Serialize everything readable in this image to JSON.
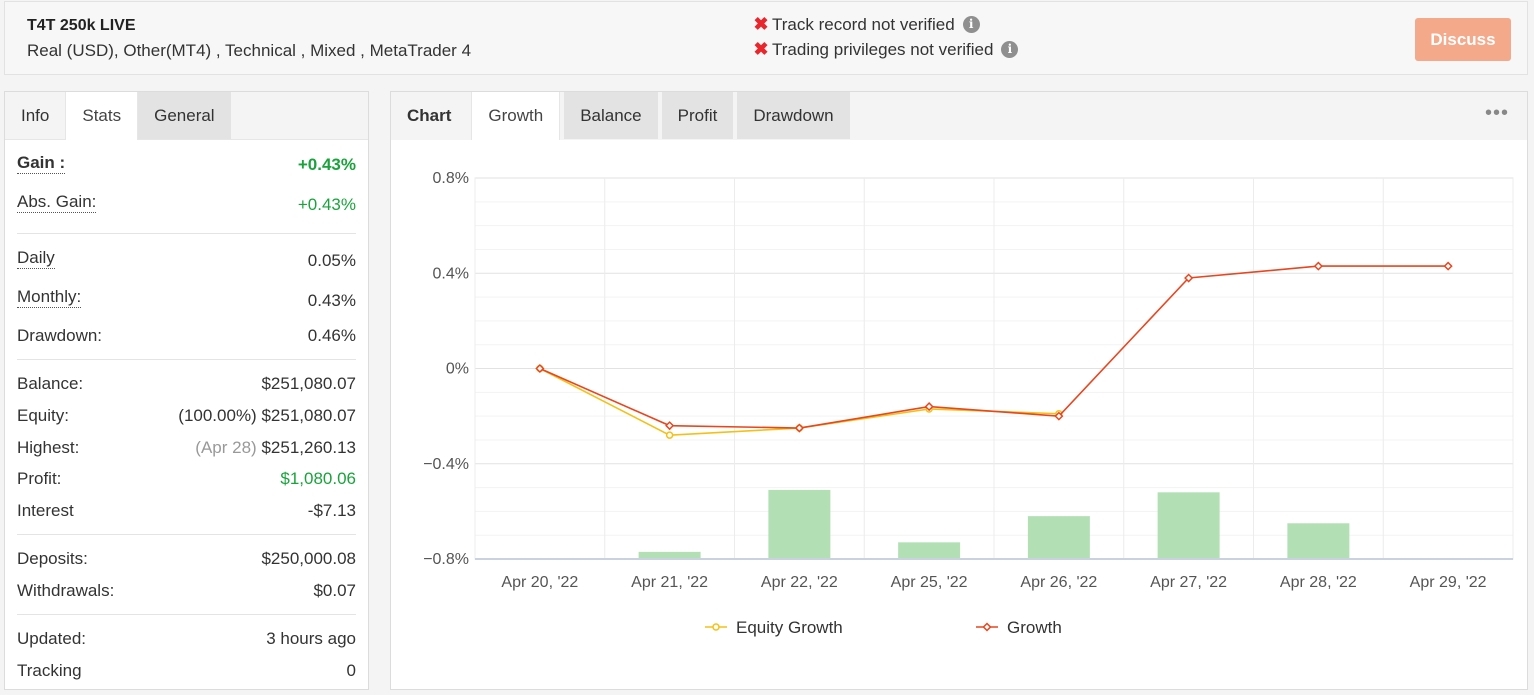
{
  "header": {
    "account_name": "T4T 250k LIVE",
    "account_desc": "Real (USD), Other(MT4) , Technical , Mixed , MetaTrader 4",
    "track_record": "Track record not verified",
    "trading_privileges": "Trading privileges not verified",
    "discuss_label": "Discuss",
    "x_mark": "✖",
    "info_glyph": "i"
  },
  "left_tabs": [
    "Info",
    "Stats",
    "General"
  ],
  "stats": {
    "gain": {
      "label": "Gain :",
      "value": "+0.43%"
    },
    "abs_gain": {
      "label": "Abs. Gain:",
      "value": "+0.43%"
    },
    "daily": {
      "label": "Daily",
      "value": "0.05%"
    },
    "monthly": {
      "label": "Monthly:",
      "value": "0.43%"
    },
    "drawdown": {
      "label": "Drawdown:",
      "value": "0.46%"
    },
    "balance": {
      "label": "Balance:",
      "value": "$251,080.07"
    },
    "equity": {
      "label": "Equity:",
      "note": "(100.00%)",
      "value": "$251,080.07"
    },
    "highest": {
      "label": "Highest:",
      "note": "(Apr 28)",
      "value": "$251,260.13"
    },
    "profit": {
      "label": "Profit:",
      "value": "$1,080.06"
    },
    "interest": {
      "label": "Interest",
      "value": "-$7.13"
    },
    "deposits": {
      "label": "Deposits:",
      "value": "$250,000.08"
    },
    "withdrawals": {
      "label": "Withdrawals:",
      "value": "$0.07"
    },
    "updated": {
      "label": "Updated:",
      "value": "3 hours ago"
    },
    "tracking": {
      "label": "Tracking",
      "value": "0"
    }
  },
  "right_tabs": [
    "Chart",
    "Growth",
    "Balance",
    "Profit",
    "Drawdown"
  ],
  "more_glyph": "•••",
  "colors": {
    "equity": "#f5c015",
    "growth": "#e8461f",
    "bars": "#b2e0b4",
    "green": "#1aa33c"
  },
  "chart_data": {
    "type": "line",
    "categories": [
      "Apr 20, '22",
      "Apr 21, '22",
      "Apr 22, '22",
      "Apr 25, '22",
      "Apr 26, '22",
      "Apr 27, '22",
      "Apr 28, '22",
      "Apr 29, '22"
    ],
    "series": [
      {
        "name": "Equity Growth",
        "values": [
          0,
          -0.28,
          -0.25,
          -0.17,
          -0.19,
          null,
          null,
          null
        ]
      },
      {
        "name": "Growth",
        "values": [
          0,
          -0.24,
          -0.25,
          -0.16,
          -0.2,
          0.38,
          0.43,
          0.43
        ]
      }
    ],
    "bars": [
      0,
      0.03,
      0.29,
      0.07,
      0.18,
      0.28,
      0.15,
      0
    ],
    "y_ticks": [
      "0.8%",
      "0.4%",
      "0%",
      "−0.4%",
      "−0.8%"
    ],
    "ylim": [
      -0.8,
      0.8
    ],
    "grid": true,
    "legend_position": "bottom"
  }
}
